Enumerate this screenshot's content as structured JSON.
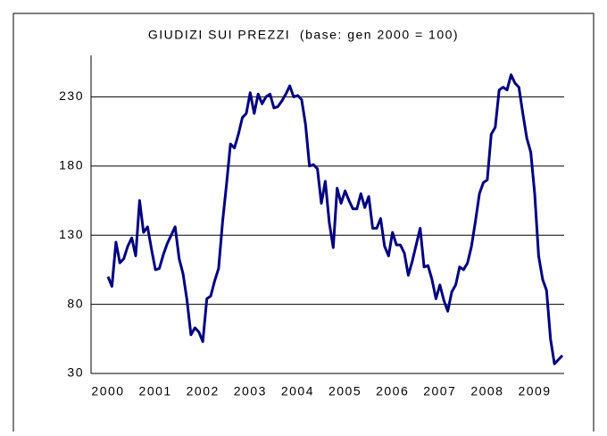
{
  "chart_data": {
    "type": "line",
    "title": "GIUDIZI SUI PREZZI  (base: gen 2000 = 100)",
    "categories": [
      "2000",
      null,
      null,
      null,
      null,
      null,
      null,
      null,
      null,
      null,
      null,
      null,
      "2001",
      null,
      null,
      null,
      null,
      null,
      null,
      null,
      null,
      null,
      null,
      null,
      "2002",
      null,
      null,
      null,
      null,
      null,
      null,
      null,
      null,
      null,
      null,
      null,
      "2003",
      null,
      null,
      null,
      null,
      null,
      null,
      null,
      null,
      null,
      null,
      null,
      "2004",
      null,
      null,
      null,
      null,
      null,
      null,
      null,
      null,
      null,
      null,
      null,
      "2005",
      null,
      null,
      null,
      null,
      null,
      null,
      null,
      null,
      null,
      null,
      null,
      "2006",
      null,
      null,
      null,
      null,
      null,
      null,
      null,
      null,
      null,
      null,
      null,
      "2007",
      null,
      null,
      null,
      null,
      null,
      null,
      null,
      null,
      null,
      null,
      null,
      "2008",
      null,
      null,
      null,
      null,
      null,
      null,
      null,
      null,
      null,
      null,
      null,
      "2009",
      null,
      null,
      null,
      null,
      null,
      null,
      null
    ],
    "series": [
      {
        "color": "#000080",
        "values": [
          100,
          93,
          125,
          110,
          113,
          122,
          128,
          115,
          155,
          132,
          136,
          120,
          105,
          106,
          116,
          124,
          130,
          136,
          113,
          102,
          83,
          58,
          63,
          60,
          53,
          84,
          86,
          97,
          106,
          140,
          167,
          196,
          193,
          203,
          215,
          218,
          233,
          218,
          232,
          225,
          230,
          232,
          222,
          223,
          227,
          232,
          238,
          230,
          231,
          228,
          210,
          180,
          181,
          178,
          153,
          169,
          139,
          121,
          164,
          153,
          162,
          155,
          149,
          149,
          160,
          150,
          158,
          135,
          135,
          142,
          122,
          115,
          132,
          123,
          123,
          117,
          101,
          111,
          123,
          135,
          107,
          108,
          98,
          84,
          94,
          83,
          75,
          89,
          94,
          107,
          105,
          110,
          122,
          140,
          160,
          168,
          170,
          203,
          208,
          235,
          237,
          235,
          246,
          240,
          237,
          218,
          200,
          190,
          160,
          115,
          98,
          90,
          55,
          37,
          40,
          43
        ]
      }
    ],
    "ylim": [
      30,
      260
    ],
    "yticks": [
      30,
      80,
      130,
      180,
      230
    ],
    "grid": true
  }
}
